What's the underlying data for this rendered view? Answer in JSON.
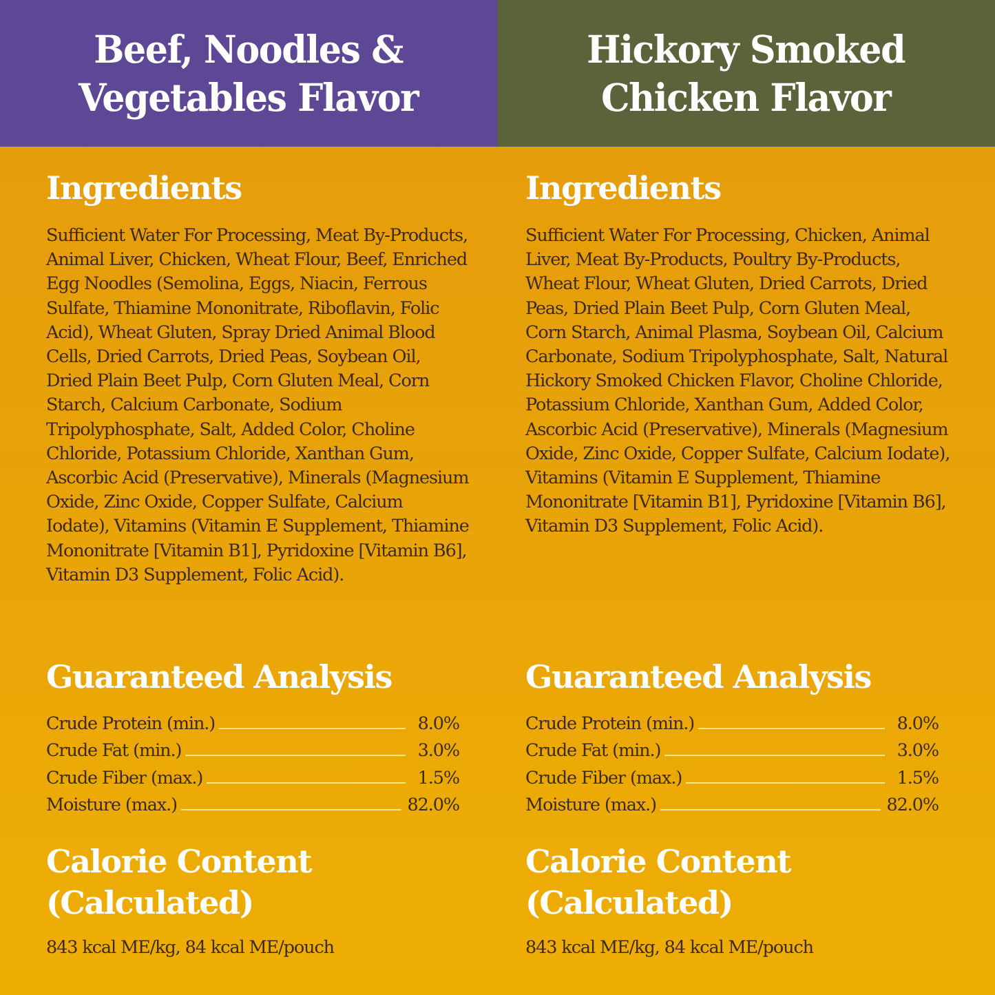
{
  "colors": {
    "left_header_bg": "#5e4896",
    "right_header_bg": "#5b633a",
    "body_bg": "#e8a309",
    "heading_text": "#ffffff",
    "body_text": "#3d2a10",
    "leader_line": "#fbe48a"
  },
  "products": [
    {
      "title": "Beef, Noodles &\nVegetables Flavor",
      "ingredients_heading": "Ingredients",
      "ingredients": " Sufficient Water For Processing, Meat By-Products, Animal Liver, Chicken, Wheat Flour, Beef,  Enriched Egg Noodles (Semolina, Eggs, Niacin, Ferrous Sulfate, Thiamine Mononitrate, Riboflavin, Folic Acid), Wheat Gluten, Spray Dried Animal Blood Cells, Dried Carrots, Dried Peas, Soybean Oil,  Dried Plain Beet Pulp, Corn Gluten Meal,  Corn Starch, Calcium Carbonate, Sodium Tripolyphosphate, Salt, Added Color, Choline Chloride, Potassium Chloride, Xanthan Gum, Ascorbic Acid (Preservative), Minerals (Magnesium Oxide, Zinc Oxide, Copper Sulfate, Calcium Iodate), Vitamins (Vitamin E Supplement, Thiamine Mononitrate [Vitamin B1], Pyridoxine [Vitamin B6], Vitamin D3 Supplement, Folic Acid).",
      "analysis_heading": "Guaranteed Analysis",
      "analysis": [
        {
          "label": "Crude Protein (min.)",
          "value": "8.0%"
        },
        {
          "label": "Crude Fat (min.)",
          "value": "3.0%"
        },
        {
          "label": "Crude Fiber (max.)",
          "value": "1.5%"
        },
        {
          "label": "Moisture (max.)",
          "value": "82.0%"
        }
      ],
      "calorie_heading": "Calorie Content\n(Calculated)",
      "calorie_value": "843 kcal ME/kg, 84 kcal ME/pouch"
    },
    {
      "title": "Hickory Smoked\nChicken Flavor",
      "ingredients_heading": "Ingredients",
      "ingredients": "Sufficient Water For Processing, Chicken, Animal Liver, Meat By-Products, Poultry By-Products, Wheat Flour, Wheat Gluten, Dried Carrots, Dried Peas, Dried Plain Beet Pulp, Corn Gluten Meal, Corn Starch, Animal Plasma, Soybean Oil, Calcium Carbonate, Sodium Tripolyphosphate, Salt, Natural Hickory Smoked Chicken Flavor, Choline Chloride, Potassium Chloride, Xanthan Gum, Added Color, Ascorbic Acid (Preservative), Minerals (Magnesium Oxide, Zinc Oxide, Copper Sulfate, Calcium Iodate), Vitamins (Vitamin E Supplement, Thiamine Mononitrate [Vitamin B1], Pyridoxine [Vitamin B6], Vitamin D3 Supplement, Folic Acid).",
      "analysis_heading": "Guaranteed Analysis",
      "analysis": [
        {
          "label": "Crude Protein (min.)",
          "value": "8.0%"
        },
        {
          "label": "Crude Fat (min.)",
          "value": "3.0%"
        },
        {
          "label": "Crude Fiber (max.)",
          "value": "1.5%"
        },
        {
          "label": "Moisture (max.)",
          "value": "82.0%"
        }
      ],
      "calorie_heading": "Calorie Content\n(Calculated)",
      "calorie_value": "843 kcal ME/kg, 84 kcal ME/pouch"
    }
  ]
}
